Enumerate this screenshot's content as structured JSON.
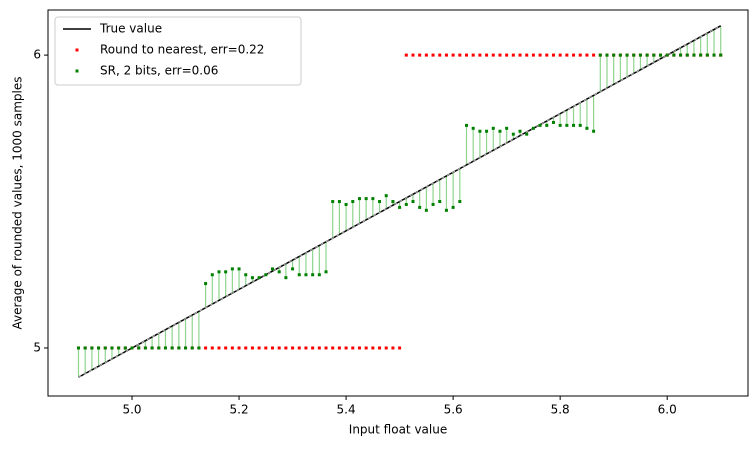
{
  "chart_data": {
    "type": "scatter",
    "xlabel": "Input float value",
    "ylabel": "Average of rounded values, 1000 samples",
    "xlim": [
      4.843,
      6.151
    ],
    "ylim": [
      4.836,
      6.154
    ],
    "xticks": [
      {
        "value": 5.0,
        "label": "5.0"
      },
      {
        "value": 5.2,
        "label": "5.2"
      },
      {
        "value": 5.4,
        "label": "5.4"
      },
      {
        "value": 5.6,
        "label": "5.6"
      },
      {
        "value": 5.8,
        "label": "5.8"
      },
      {
        "value": 6.0,
        "label": "6.0"
      }
    ],
    "yticks": [
      5,
      6
    ],
    "legend": "upper left",
    "x": [
      4.9,
      4.9125,
      4.925,
      4.9375,
      4.95,
      4.9625,
      4.975,
      4.9875,
      5.0,
      5.0125,
      5.025,
      5.0375,
      5.05,
      5.0625,
      5.075,
      5.0875,
      5.1,
      5.1125,
      5.125,
      5.1375,
      5.15,
      5.1625,
      5.175,
      5.1875,
      5.2,
      5.2125,
      5.225,
      5.2375,
      5.25,
      5.2625,
      5.275,
      5.2875,
      5.3,
      5.3125,
      5.325,
      5.3375,
      5.35,
      5.3625,
      5.375,
      5.3875,
      5.4,
      5.4125,
      5.425,
      5.4375,
      5.45,
      5.4625,
      5.475,
      5.4875,
      5.5,
      5.5125,
      5.525,
      5.5375,
      5.55,
      5.5625,
      5.575,
      5.5875,
      5.6,
      5.6125,
      5.625,
      5.6375,
      5.65,
      5.6625,
      5.675,
      5.6875,
      5.7,
      5.7125,
      5.725,
      5.7375,
      5.75,
      5.7625,
      5.775,
      5.7875,
      5.8,
      5.8125,
      5.825,
      5.8375,
      5.85,
      5.8625,
      5.875,
      5.8875,
      5.9,
      5.9125,
      5.925,
      5.9375,
      5.95,
      5.9625,
      5.975,
      5.9875,
      6.0,
      6.0125,
      6.025,
      6.0375,
      6.05,
      6.0625,
      6.075,
      6.0875,
      6.1
    ],
    "series": [
      {
        "name": "True value",
        "color": "#000000",
        "style": "line",
        "x": [
          4.9,
          6.1
        ],
        "values": [
          4.9,
          6.1
        ]
      },
      {
        "name": "Round to nearest, err=0.22",
        "color": "#ff0000",
        "style": "marker",
        "values": [
          5,
          5,
          5,
          5,
          5,
          5,
          5,
          5,
          5,
          5,
          5,
          5,
          5,
          5,
          5,
          5,
          5,
          5,
          5,
          5,
          5,
          5,
          5,
          5,
          5,
          5,
          5,
          5,
          5,
          5,
          5,
          5,
          5,
          5,
          5,
          5,
          5,
          5,
          5,
          5,
          5,
          5,
          5,
          5,
          5,
          5,
          5,
          5,
          5,
          6,
          6,
          6,
          6,
          6,
          6,
          6,
          6,
          6,
          6,
          6,
          6,
          6,
          6,
          6,
          6,
          6,
          6,
          6,
          6,
          6,
          6,
          6,
          6,
          6,
          6,
          6,
          6,
          6,
          6,
          6,
          6,
          6,
          6,
          6,
          6,
          6,
          6,
          6,
          6,
          6,
          6,
          6,
          6,
          6,
          6,
          6,
          6
        ]
      },
      {
        "name": "SR, 2 bits, err=0.06",
        "color": "#008000",
        "style": "marker",
        "stem_color": "#90d490",
        "values": [
          5,
          5,
          5,
          5,
          5,
          5,
          5,
          5,
          5,
          5,
          5,
          5,
          5,
          5,
          5,
          5,
          5,
          5,
          5,
          5.22,
          5.25,
          5.26,
          5.26,
          5.27,
          5.27,
          5.25,
          5.24,
          5.24,
          5.25,
          5.27,
          5.26,
          5.24,
          5.27,
          5.25,
          5.25,
          5.25,
          5.25,
          5.26,
          5.5,
          5.5,
          5.49,
          5.5,
          5.51,
          5.51,
          5.51,
          5.5,
          5.52,
          5.5,
          5.48,
          5.49,
          5.5,
          5.48,
          5.47,
          5.49,
          5.5,
          5.47,
          5.48,
          5.5,
          5.76,
          5.75,
          5.74,
          5.74,
          5.75,
          5.74,
          5.75,
          5.73,
          5.74,
          5.73,
          5.75,
          5.76,
          5.76,
          5.77,
          5.76,
          5.76,
          5.76,
          5.76,
          5.75,
          5.74,
          6,
          6,
          6,
          6,
          6,
          6,
          6,
          6,
          6,
          6,
          6,
          6,
          6,
          6,
          6,
          6,
          6,
          6,
          6
        ]
      }
    ]
  }
}
